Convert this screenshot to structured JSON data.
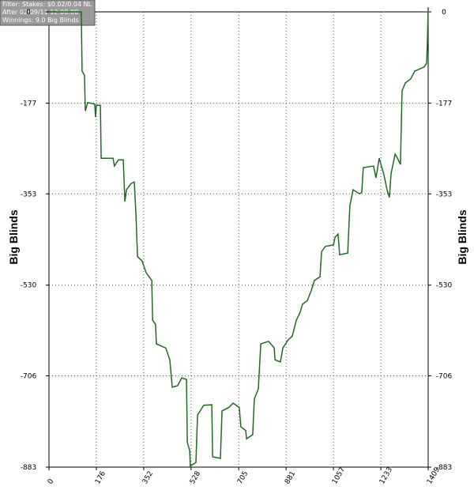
{
  "info": [
    "Filter: Stakes: $0.02/0.04 NL",
    "After 02/09/11 12:00:00",
    "Winnings: 9.0 Big Blinds"
  ],
  "chart_data": {
    "type": "line",
    "y_label": "Big Blinds",
    "color": "#1f6b1f",
    "grid": true,
    "x": [
      0,
      120,
      123,
      132,
      135,
      144,
      170,
      173,
      176,
      191,
      194,
      238,
      243,
      258,
      276,
      282,
      288,
      305,
      317,
      323,
      329,
      346,
      361,
      382,
      385,
      396,
      399,
      434,
      449,
      458,
      478,
      493,
      511,
      514,
      523,
      525,
      546,
      552,
      575,
      605,
      608,
      637,
      643,
      669,
      684,
      707,
      713,
      731,
      734,
      757,
      763,
      778,
      787,
      816,
      837,
      840,
      860,
      869,
      889,
      904,
      919,
      933,
      942,
      960,
      975,
      986,
      1007,
      1013,
      1027,
      1057,
      1063,
      1074,
      1080,
      1110,
      1118,
      1130,
      1154,
      1162,
      1168,
      1206,
      1215,
      1227,
      1245,
      1256,
      1265,
      1271,
      1286,
      1295,
      1306,
      1312,
      1324,
      1344,
      1359,
      1394,
      1403,
      1406,
      1409
    ],
    "series": [
      {
        "values": [
          0,
          0,
          -115,
          -123,
          -192,
          -176,
          -179,
          -204,
          -181,
          -181,
          -284,
          -284,
          -299,
          -287,
          -287,
          -368,
          -345,
          -333,
          -330,
          -391,
          -475,
          -483,
          -506,
          -521,
          -598,
          -606,
          -644,
          -652,
          -675,
          -728,
          -725,
          -710,
          -713,
          -835,
          -851,
          -881,
          -874,
          -782,
          -763,
          -762,
          -863,
          -866,
          -774,
          -767,
          -759,
          -767,
          -805,
          -812,
          -828,
          -820,
          -751,
          -731,
          -644,
          -639,
          -652,
          -675,
          -679,
          -652,
          -636,
          -629,
          -598,
          -583,
          -567,
          -560,
          -540,
          -521,
          -514,
          -465,
          -455,
          -452,
          -437,
          -431,
          -471,
          -468,
          -376,
          -345,
          -353,
          -350,
          -302,
          -299,
          -322,
          -284,
          -317,
          -345,
          -360,
          -314,
          -276,
          -284,
          -296,
          -153,
          -138,
          -130,
          -115,
          -107,
          -100,
          -61,
          9
        ]
      }
    ],
    "xlim": [
      0,
      1409
    ],
    "ylim": [
      -883,
      0
    ],
    "xticks": [
      0,
      176,
      352,
      528,
      705,
      881,
      1057,
      1233,
      1409
    ],
    "yticks": [
      0,
      -177,
      -353,
      -530,
      -706,
      -883
    ]
  }
}
